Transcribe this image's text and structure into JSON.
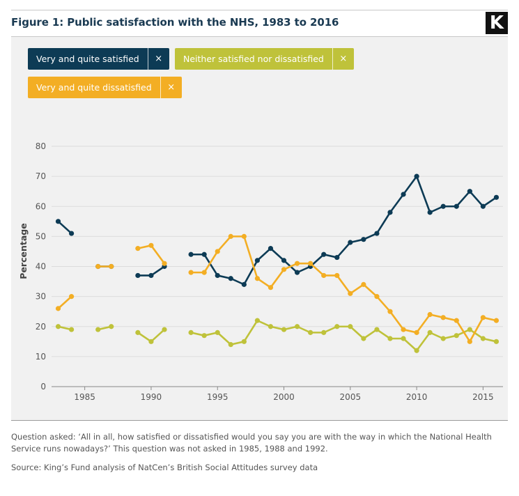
{
  "header": {
    "title": "Figure 1: Public satisfaction with the NHS, 1983 to 2016",
    "logo_text": "K"
  },
  "legend": [
    {
      "label": "Very and quite satisfied",
      "close": "×"
    },
    {
      "label": "Neither satisfied nor dissatisfied",
      "close": "×"
    },
    {
      "label": "Very and quite dissatisfied",
      "close": "×"
    }
  ],
  "footer": {
    "note": "Question asked: ‘All in all, how satisfied or dissatisfied would you say you are with the way in which the National Health Service runs nowadays?’ This question was not asked in 1985, 1988 and 1992.",
    "source": "Source: King’s Fund analysis of NatCen’s British Social Attitudes survey data"
  },
  "chart_data": {
    "type": "line",
    "title": "Figure 1: Public satisfaction with the NHS, 1983 to 2016",
    "xlabel": "",
    "ylabel": "Percentage",
    "xlim": [
      1982.5,
      2016.5
    ],
    "ylim": [
      0,
      80
    ],
    "xticks": [
      1985,
      1990,
      1995,
      2000,
      2005,
      2010,
      2015
    ],
    "yticks": [
      0,
      10,
      20,
      30,
      40,
      50,
      60,
      70,
      80
    ],
    "grid": "horizontal",
    "x": [
      1983,
      1984,
      1985,
      1986,
      1987,
      1988,
      1989,
      1990,
      1991,
      1992,
      1993,
      1994,
      1995,
      1996,
      1997,
      1998,
      1999,
      2000,
      2001,
      2002,
      2003,
      2004,
      2005,
      2006,
      2007,
      2008,
      2009,
      2010,
      2011,
      2012,
      2013,
      2014,
      2015,
      2016
    ],
    "series": [
      {
        "name": "Very and quite satisfied",
        "color": "#0d3b55",
        "values": [
          55,
          51,
          null,
          40,
          40,
          null,
          37,
          37,
          40,
          null,
          44,
          44,
          37,
          36,
          34,
          42,
          46,
          42,
          38,
          40,
          44,
          43,
          48,
          49,
          51,
          58,
          64,
          70,
          58,
          60,
          60,
          65,
          60,
          63
        ]
      },
      {
        "name": "Neither satisfied nor dissatisfied",
        "color": "#bfc23a",
        "values": [
          20,
          19,
          null,
          19,
          20,
          null,
          18,
          15,
          19,
          null,
          18,
          17,
          18,
          14,
          15,
          22,
          20,
          19,
          20,
          18,
          18,
          20,
          20,
          16,
          19,
          16,
          16,
          12,
          18,
          16,
          17,
          19,
          16,
          15
        ]
      },
      {
        "name": "Very and quite dissatisfied",
        "color": "#f3ae24",
        "values": [
          26,
          30,
          null,
          40,
          40,
          null,
          46,
          47,
          41,
          null,
          38,
          38,
          45,
          50,
          50,
          36,
          33,
          39,
          41,
          41,
          37,
          37,
          31,
          34,
          30,
          25,
          19,
          18,
          24,
          23,
          22,
          15,
          23,
          22
        ]
      }
    ]
  }
}
